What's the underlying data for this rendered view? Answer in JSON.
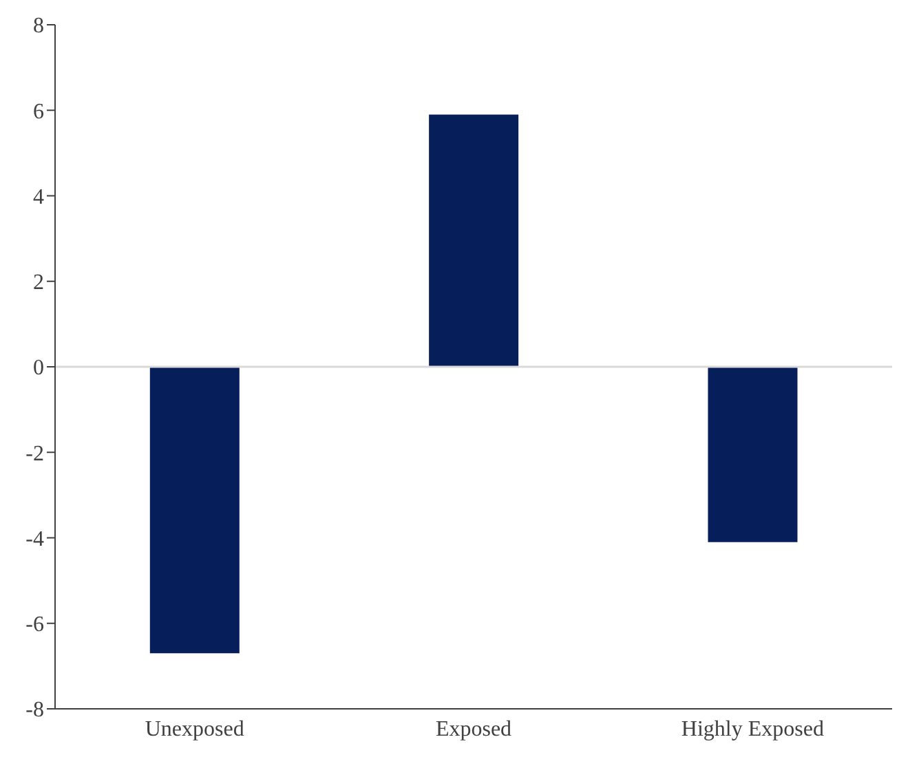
{
  "chart_data": {
    "type": "bar",
    "categories": [
      "Unexposed",
      "Exposed",
      "Highly Exposed"
    ],
    "values": [
      -6.7,
      5.9,
      -4.1
    ],
    "color": "#061f5a",
    "ylim": [
      -8,
      8
    ],
    "yticks": [
      -8,
      -6,
      -4,
      -2,
      0,
      2,
      4,
      6,
      8
    ],
    "grid": false,
    "ref_lines": [
      {
        "axis": "y",
        "value": 0,
        "color": "#d9d9d9"
      }
    ]
  }
}
